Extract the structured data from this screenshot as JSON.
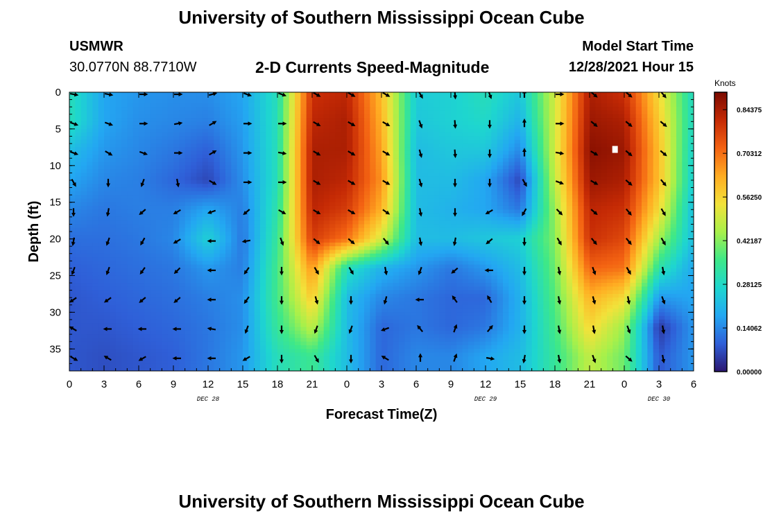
{
  "page": {
    "title": "University of Southern Mississippi Ocean Cube",
    "title_repeat": "University of Southern Mississippi Ocean Cube",
    "station": "USMWR",
    "coords": "30.0770N  88.7710W",
    "subtitle": "2-D Currents Speed-Magnitude",
    "model_start_label": "Model Start Time",
    "model_start_value": "12/28/2021 Hour 15"
  },
  "chart_data": {
    "type": "heatmap",
    "title": "2-D Currents Speed-Magnitude",
    "xlabel": "Forecast Time(Z)",
    "ylabel": "Depth (ft)",
    "y_range": [
      0,
      38
    ],
    "y_ticks": [
      "0",
      "5",
      "10",
      "15",
      "20",
      "25",
      "30",
      "35"
    ],
    "x_ticks": [
      "0",
      "3",
      "6",
      "9",
      "12",
      "15",
      "18",
      "21",
      "0",
      "3",
      "6",
      "9",
      "12",
      "15",
      "18",
      "21",
      "0",
      "3",
      "6"
    ],
    "x_hours": [
      0,
      3,
      6,
      9,
      12,
      15,
      18,
      21,
      24,
      27,
      30,
      33,
      36,
      39,
      42,
      45,
      48,
      51,
      54
    ],
    "x_range_hours": [
      0,
      54
    ],
    "date_labels": [
      {
        "text": "DEC 28",
        "hour": 12
      },
      {
        "text": "DEC 29",
        "hour": 36
      },
      {
        "text": "DEC 30",
        "hour": 51
      }
    ],
    "colorbar": {
      "label": "Knots",
      "ticks": [
        "0.84375",
        "0.70312",
        "0.56250",
        "0.42187",
        "0.28125",
        "0.14062",
        "0.00000"
      ],
      "range": [
        0,
        0.9
      ]
    },
    "marker": {
      "hour": 47.2,
      "depth": 7.8
    },
    "colors": [
      "#2b1670",
      "#2f5fd8",
      "#23a7f2",
      "#1ed6cf",
      "#3ee888",
      "#a8f04a",
      "#f2e23a",
      "#ffac22",
      "#f36212",
      "#c52a05",
      "#7a0a00"
    ],
    "speed_rows": {
      "hours": [
        0,
        3,
        6,
        9,
        12,
        15,
        18,
        21,
        24,
        27,
        30,
        33,
        36,
        39,
        42,
        45,
        48,
        51,
        54
      ],
      "depths": [
        0,
        4,
        8,
        12,
        16,
        20,
        24,
        28,
        32,
        36
      ],
      "values": [
        [
          0.3,
          0.18,
          0.16,
          0.15,
          0.15,
          0.18,
          0.3,
          0.8,
          0.82,
          0.6,
          0.25,
          0.26,
          0.3,
          0.24,
          0.5,
          0.84,
          0.8,
          0.55,
          0.28
        ],
        [
          0.3,
          0.18,
          0.15,
          0.14,
          0.13,
          0.17,
          0.3,
          0.82,
          0.84,
          0.62,
          0.24,
          0.26,
          0.28,
          0.2,
          0.5,
          0.86,
          0.84,
          0.58,
          0.28
        ],
        [
          0.22,
          0.16,
          0.14,
          0.12,
          0.09,
          0.16,
          0.3,
          0.84,
          0.84,
          0.64,
          0.22,
          0.24,
          0.24,
          0.14,
          0.5,
          0.88,
          0.86,
          0.6,
          0.26
        ],
        [
          0.18,
          0.14,
          0.13,
          0.1,
          0.06,
          0.15,
          0.3,
          0.84,
          0.82,
          0.66,
          0.22,
          0.22,
          0.18,
          0.06,
          0.48,
          0.86,
          0.84,
          0.6,
          0.25
        ],
        [
          0.14,
          0.12,
          0.13,
          0.13,
          0.18,
          0.13,
          0.32,
          0.82,
          0.78,
          0.62,
          0.22,
          0.2,
          0.18,
          0.12,
          0.44,
          0.82,
          0.8,
          0.55,
          0.22
        ],
        [
          0.11,
          0.11,
          0.12,
          0.14,
          0.26,
          0.12,
          0.34,
          0.78,
          0.7,
          0.5,
          0.22,
          0.22,
          0.24,
          0.26,
          0.42,
          0.8,
          0.76,
          0.45,
          0.22
        ],
        [
          0.09,
          0.1,
          0.11,
          0.12,
          0.16,
          0.13,
          0.36,
          0.66,
          0.3,
          0.2,
          0.16,
          0.12,
          0.16,
          0.22,
          0.4,
          0.72,
          0.7,
          0.32,
          0.18
        ],
        [
          0.08,
          0.09,
          0.1,
          0.11,
          0.13,
          0.15,
          0.36,
          0.58,
          0.22,
          0.14,
          0.12,
          0.1,
          0.1,
          0.2,
          0.38,
          0.62,
          0.55,
          0.16,
          0.18
        ],
        [
          0.08,
          0.08,
          0.09,
          0.1,
          0.12,
          0.15,
          0.34,
          0.48,
          0.22,
          0.1,
          0.12,
          0.1,
          0.12,
          0.2,
          0.36,
          0.56,
          0.44,
          0.04,
          0.16
        ],
        [
          0.08,
          0.07,
          0.08,
          0.09,
          0.12,
          0.16,
          0.3,
          0.35,
          0.22,
          0.1,
          0.14,
          0.14,
          0.18,
          0.22,
          0.34,
          0.48,
          0.4,
          0.08,
          0.16
        ]
      ]
    },
    "vector_rows": {
      "hours": [
        0,
        3,
        6,
        9,
        12,
        15,
        18,
        21,
        24,
        27,
        30,
        33,
        36,
        39,
        42,
        45,
        48,
        51,
        54
      ],
      "depths": [
        0,
        4,
        8,
        12,
        16,
        20,
        24,
        28,
        32,
        36
      ],
      "direction_deg": [
        [
          100,
          100,
          90,
          90,
          75,
          110,
          110,
          120,
          120,
          120,
          150,
          175,
          160,
          0,
          90,
          130,
          130,
          140,
          170
        ],
        [
          110,
          110,
          90,
          80,
          60,
          90,
          90,
          120,
          120,
          120,
          160,
          175,
          180,
          0,
          90,
          130,
          130,
          130,
          170
        ],
        [
          110,
          120,
          110,
          90,
          60,
          90,
          100,
          120,
          120,
          120,
          165,
          175,
          180,
          0,
          100,
          120,
          130,
          130,
          170
        ],
        [
          150,
          180,
          200,
          170,
          120,
          90,
          90,
          120,
          120,
          120,
          165,
          180,
          180,
          150,
          110,
          120,
          130,
          140,
          175
        ],
        [
          180,
          190,
          230,
          240,
          250,
          230,
          120,
          120,
          120,
          125,
          170,
          180,
          240,
          210,
          135,
          130,
          140,
          150,
          180
        ],
        [
          190,
          200,
          210,
          240,
          270,
          260,
          160,
          130,
          130,
          140,
          170,
          190,
          230,
          180,
          150,
          140,
          140,
          150,
          180
        ],
        [
          200,
          200,
          215,
          225,
          270,
          215,
          180,
          150,
          150,
          170,
          200,
          230,
          270,
          180,
          170,
          160,
          150,
          170,
          180
        ],
        [
          235,
          235,
          230,
          230,
          270,
          215,
          180,
          165,
          180,
          195,
          270,
          325,
          330,
          180,
          170,
          165,
          170,
          160,
          205
        ],
        [
          300,
          270,
          270,
          270,
          280,
          200,
          180,
          200,
          200,
          250,
          320,
          20,
          40,
          180,
          170,
          170,
          160,
          170,
          30
        ],
        [
          120,
          300,
          240,
          270,
          270,
          240,
          180,
          150,
          180,
          300,
          0,
          20,
          100,
          190,
          170,
          160,
          130,
          170,
          200
        ]
      ]
    }
  }
}
